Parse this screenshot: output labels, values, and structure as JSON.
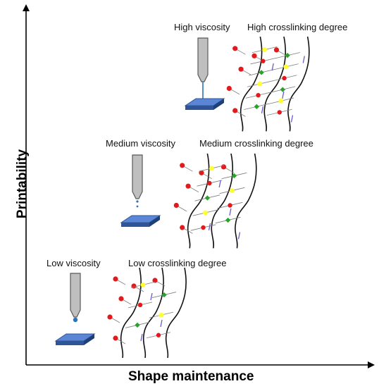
{
  "axes": {
    "x_title": "Shape maintenance",
    "y_title": "Printability"
  },
  "levels": [
    {
      "viscosity_label": "Low viscosity",
      "crosslink_label": "Low crosslinking degree",
      "tier": "low",
      "crosslink_level": 1
    },
    {
      "viscosity_label": "Medium viscosity",
      "crosslink_label": "Medium crosslinking degree",
      "tier": "medium",
      "crosslink_level": 2
    },
    {
      "viscosity_label": "High viscosity",
      "crosslink_label": "High crosslinking degree",
      "tier": "high",
      "crosslink_level": 3
    }
  ],
  "colors": {
    "axis": "#000000",
    "nozzle_fill": "#bfbfbf",
    "nozzle_stroke": "#595959",
    "substrate_top": "#5b86d6",
    "substrate_side": "#2f5597",
    "ink": "#2e75b6",
    "chain": "#111111",
    "red_node": "#e31a1c",
    "yellow_node": "#ffff33",
    "green_node": "#2ca02c",
    "crosslink_line": "#7f7f7f",
    "arrow_purple": "#6a5acd"
  }
}
